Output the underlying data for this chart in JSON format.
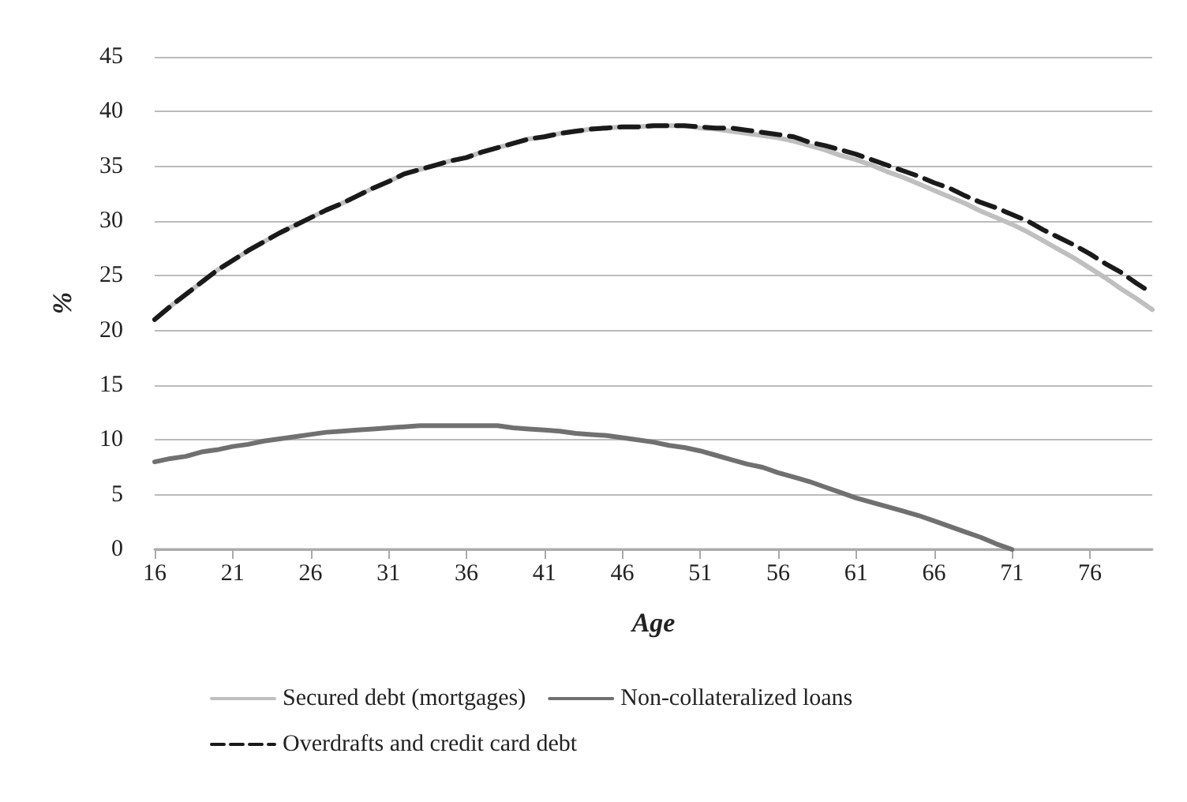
{
  "chart_data": {
    "type": "line",
    "xlabel": "Age",
    "ylabel": "%",
    "categories": [
      "16",
      null,
      null,
      null,
      null,
      "21",
      null,
      null,
      null,
      null,
      "26",
      null,
      null,
      null,
      null,
      "31",
      null,
      null,
      null,
      null,
      "36",
      null,
      null,
      null,
      null,
      "41",
      null,
      null,
      null,
      null,
      "46",
      null,
      null,
      null,
      null,
      "51",
      null,
      null,
      null,
      null,
      "56",
      null,
      null,
      null,
      null,
      "61",
      null,
      null,
      null,
      null,
      "66",
      null,
      null,
      null,
      null,
      "71",
      null,
      null,
      null,
      null,
      "76",
      null,
      null,
      null,
      null
    ],
    "series": [
      {
        "name": "Secured debt (mortgages)",
        "color": "#bfbfbf",
        "line_style": "solid",
        "values": [
          21.0,
          22.2,
          23.3,
          24.4,
          25.5,
          26.4,
          27.3,
          28.1,
          28.9,
          29.6,
          30.3,
          31.0,
          31.6,
          32.3,
          33.0,
          33.6,
          34.3,
          34.7,
          35.1,
          35.5,
          35.8,
          36.3,
          36.7,
          37.1,
          37.5,
          37.7,
          38.0,
          38.2,
          38.4,
          38.5,
          38.6,
          38.6,
          38.7,
          38.7,
          38.7,
          38.5,
          38.4,
          38.2,
          38.0,
          37.8,
          37.6,
          37.3,
          36.9,
          36.5,
          36.0,
          35.6,
          35.1,
          34.5,
          34.0,
          33.4,
          32.8,
          32.2,
          31.6,
          30.9,
          30.3,
          29.7,
          29.0,
          28.2,
          27.4,
          26.6,
          25.7,
          24.8,
          23.8,
          22.9,
          21.9
        ]
      },
      {
        "name": "Non-collateralized loans",
        "color": "#707070",
        "line_style": "solid",
        "values": [
          8.0,
          8.3,
          8.5,
          8.9,
          9.1,
          9.4,
          9.6,
          9.9,
          10.1,
          10.3,
          10.5,
          10.7,
          10.8,
          10.9,
          11.0,
          11.1,
          11.2,
          11.3,
          11.3,
          11.3,
          11.3,
          11.3,
          11.3,
          11.1,
          11.0,
          10.9,
          10.8,
          10.6,
          10.5,
          10.4,
          10.2,
          10.0,
          9.8,
          9.5,
          9.3,
          9.0,
          8.6,
          8.2,
          7.8,
          7.5,
          7.0,
          6.6,
          6.2,
          5.7,
          5.2,
          4.7,
          4.3,
          3.9,
          3.5,
          3.1,
          2.6,
          2.1,
          1.6,
          1.1,
          0.5,
          0,
          null,
          null,
          null,
          null,
          null,
          null,
          null,
          null,
          null
        ]
      },
      {
        "name": "Overdrafts and credit card debt",
        "color": "#1a1a1a",
        "line_style": "dashed",
        "values": [
          21.0,
          22.2,
          23.3,
          24.4,
          25.5,
          26.4,
          27.3,
          28.1,
          28.9,
          29.6,
          30.3,
          31.0,
          31.6,
          32.3,
          33.0,
          33.6,
          34.3,
          34.7,
          35.1,
          35.5,
          35.8,
          36.3,
          36.7,
          37.1,
          37.5,
          37.7,
          38.0,
          38.2,
          38.4,
          38.5,
          38.6,
          38.6,
          38.7,
          38.7,
          38.7,
          38.6,
          38.5,
          38.5,
          38.3,
          38.1,
          37.9,
          37.7,
          37.2,
          36.9,
          36.5,
          36.1,
          35.6,
          35.1,
          34.6,
          34.1,
          33.5,
          33.0,
          32.3,
          31.7,
          31.2,
          30.6,
          30.0,
          29.2,
          28.5,
          27.8,
          27.0,
          26.1,
          25.3,
          24.3,
          23.4
        ]
      }
    ],
    "ylim": [
      0,
      45
    ],
    "yticks": [
      0,
      5,
      10,
      15,
      20,
      25,
      30,
      35,
      40,
      45
    ],
    "grid": "y",
    "legend": "bottom",
    "marker": "none"
  }
}
